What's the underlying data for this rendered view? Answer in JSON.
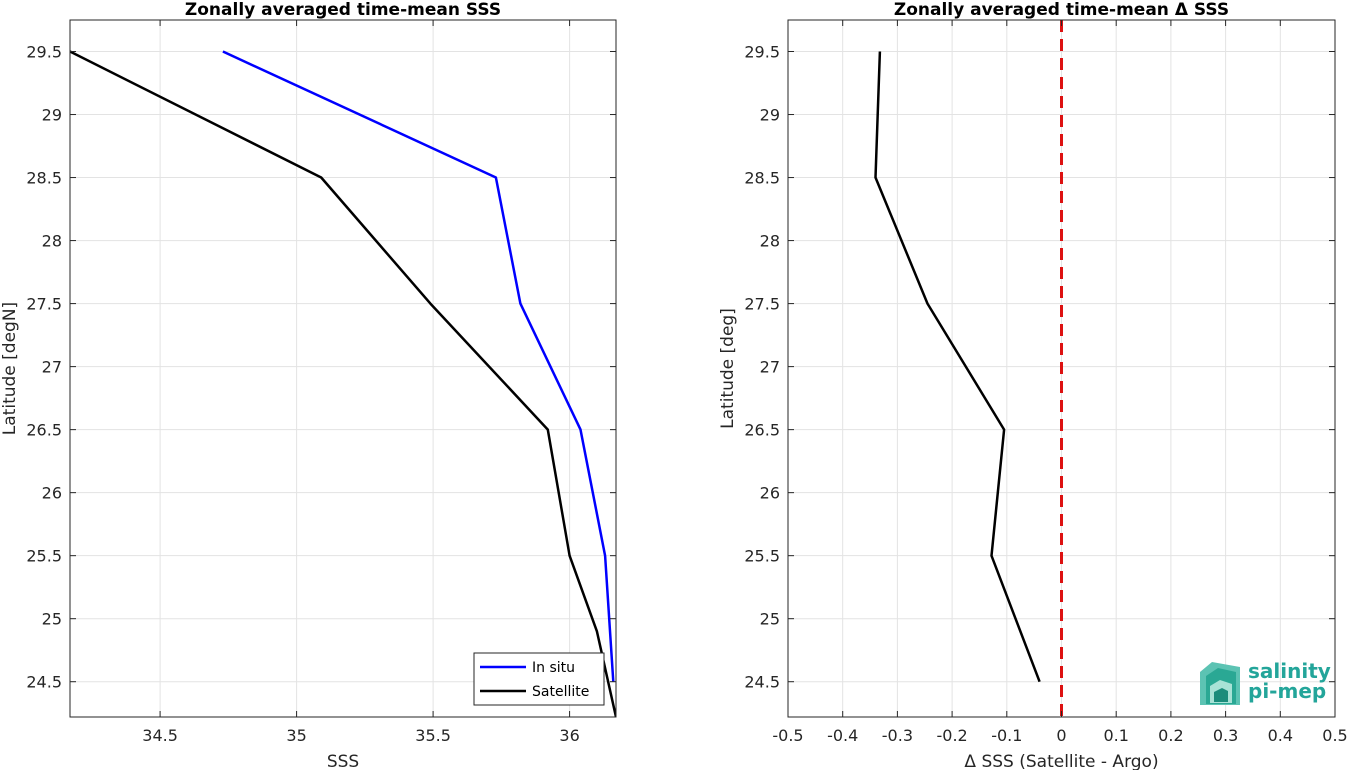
{
  "chart_data": [
    {
      "type": "line",
      "title": "Zonally averaged time-mean SSS",
      "xlabel": "SSS",
      "ylabel": "Latitude [degN]",
      "xlim": [
        34.17,
        36.17
      ],
      "ylim": [
        24.22,
        29.75
      ],
      "xticks": [
        34.5,
        35,
        35.5,
        36
      ],
      "xtick_labels": [
        "34.5",
        "35",
        "35.5",
        "36"
      ],
      "yticks": [
        24.5,
        25,
        25.5,
        26,
        26.5,
        27,
        27.5,
        28,
        28.5,
        29,
        29.5
      ],
      "ytick_labels": [
        "24.5",
        "25",
        "25.5",
        "26",
        "26.5",
        "27",
        "27.5",
        "28",
        "28.5",
        "29",
        "29.5"
      ],
      "grid": true,
      "legend_position": "bottom-right",
      "series": [
        {
          "name": "In situ",
          "color": "#0000ff",
          "x": [
            36.16,
            36.13,
            36.04,
            35.82,
            35.73,
            34.73
          ],
          "y": [
            24.5,
            25.5,
            26.5,
            27.5,
            28.5,
            29.5
          ]
        },
        {
          "name": "Satellite",
          "color": "#000000",
          "x": [
            36.17,
            36.1,
            36.0,
            35.92,
            35.49,
            35.09,
            34.17
          ],
          "y": [
            24.22,
            24.9,
            25.5,
            26.5,
            27.5,
            28.5,
            29.5
          ]
        }
      ]
    },
    {
      "type": "line",
      "title": "Zonally averaged time-mean Δ SSS",
      "xlabel": "Δ SSS (Satellite - Argo)",
      "ylabel": "Latitude [deg]",
      "xlim": [
        -0.5,
        0.5
      ],
      "ylim": [
        24.22,
        29.75
      ],
      "xticks": [
        -0.5,
        -0.4,
        -0.3,
        -0.2,
        -0.1,
        0,
        0.1,
        0.2,
        0.3,
        0.4,
        0.5
      ],
      "xtick_labels": [
        "-0.5",
        "-0.4",
        "-0.3",
        "-0.2",
        "-0.1",
        "0",
        "0.1",
        "0.2",
        "0.3",
        "0.4",
        "0.5"
      ],
      "yticks": [
        24.5,
        25,
        25.5,
        26,
        26.5,
        27,
        27.5,
        28,
        28.5,
        29,
        29.5
      ],
      "ytick_labels": [
        "24.5",
        "25",
        "25.5",
        "26",
        "26.5",
        "27",
        "27.5",
        "28",
        "28.5",
        "29",
        "29.5"
      ],
      "grid": true,
      "reference_line": {
        "x": 0,
        "color": "#dd1111",
        "style": "dashed"
      },
      "series": [
        {
          "color": "#000000",
          "x": [
            -0.04,
            -0.128,
            -0.105,
            -0.245,
            -0.34,
            -0.332
          ],
          "y": [
            24.5,
            25.5,
            26.5,
            27.5,
            28.5,
            29.5
          ]
        }
      ]
    }
  ],
  "logo": {
    "line1": "salinity",
    "line2": "pi-mep",
    "color": "#23a59a"
  }
}
